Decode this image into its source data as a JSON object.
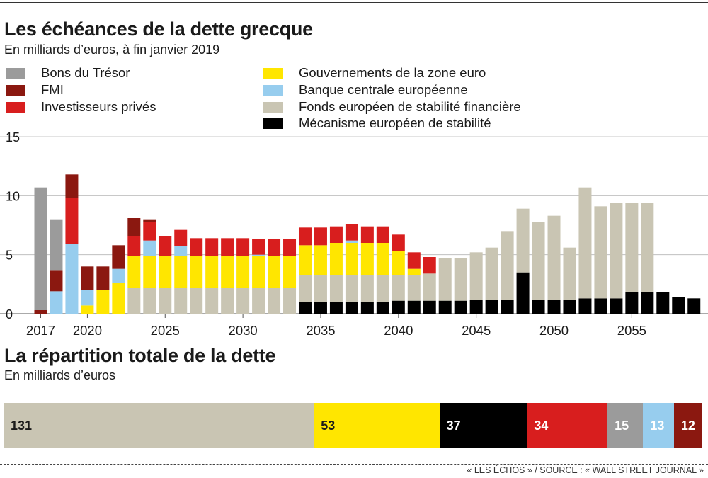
{
  "header": {
    "title": "Les échéances de la dette grecque",
    "subtitle": "En milliards d’euros, à fin janvier 2019"
  },
  "legend": [
    {
      "label": "Bons du Trésor",
      "color": "#9b9b9b"
    },
    {
      "label": "FMI",
      "color": "#8b1810"
    },
    {
      "label": "Investisseurs privés",
      "color": "#d81e1e"
    },
    {
      "label": "Gouvernements de la zone euro",
      "color": "#ffe600"
    },
    {
      "label": "Banque centrale européenne",
      "color": "#97cdee"
    },
    {
      "label": "Fonds européen de stabilité financière",
      "color": "#c9c5b3"
    },
    {
      "label": "Mécanisme européen de stabilité",
      "color": "#000000"
    }
  ],
  "chart_data": {
    "type": "bar",
    "stacked": true,
    "title": "Les échéances de la dette grecque",
    "subtitle": "En milliards d’euros, à fin janvier 2019",
    "ylim": [
      0,
      15
    ],
    "y_ticks": [
      0,
      5,
      10,
      15
    ],
    "x_tick_labels": [
      {
        "year": 2017,
        "label": "2017"
      },
      {
        "year": 2020,
        "label": "2020"
      },
      {
        "year": 2025,
        "label": "2025"
      },
      {
        "year": 2030,
        "label": "2030"
      },
      {
        "year": 2035,
        "label": "2035"
      },
      {
        "year": 2040,
        "label": "2040"
      },
      {
        "year": 2045,
        "label": "2045"
      },
      {
        "year": 2050,
        "label": "2050"
      },
      {
        "year": 2055,
        "label": "2055"
      }
    ],
    "grid": true,
    "x": [
      2017,
      2018,
      2019,
      2020,
      2021,
      2022,
      2023,
      2024,
      2025,
      2026,
      2027,
      2028,
      2029,
      2030,
      2031,
      2032,
      2033,
      2034,
      2035,
      2036,
      2037,
      2038,
      2039,
      2040,
      2041,
      2042,
      2043,
      2044,
      2045,
      2046,
      2047,
      2048,
      2049,
      2050,
      2051,
      2052,
      2053,
      2054,
      2055,
      2056,
      2057,
      2058,
      2059
    ],
    "series": [
      {
        "name": "Mécanisme européen de stabilité",
        "color": "#000000",
        "values": [
          0,
          0,
          0,
          0,
          0,
          0,
          0,
          0,
          0,
          0,
          0,
          0,
          0,
          0,
          0,
          0,
          0,
          1.0,
          1.0,
          1.0,
          1.0,
          1.0,
          1.0,
          1.1,
          1.1,
          1.1,
          1.1,
          1.1,
          1.2,
          1.2,
          1.2,
          3.5,
          1.2,
          1.2,
          1.2,
          1.3,
          1.3,
          1.3,
          1.8,
          1.8,
          1.8,
          1.4,
          1.3
        ]
      },
      {
        "name": "Fonds européen de stabilité financière",
        "color": "#c9c5b3",
        "values": [
          0,
          0,
          0,
          0,
          0,
          0,
          2.2,
          2.2,
          2.2,
          2.2,
          2.2,
          2.2,
          2.2,
          2.2,
          2.2,
          2.2,
          2.2,
          2.3,
          2.3,
          2.3,
          2.3,
          2.3,
          2.3,
          2.2,
          2.2,
          2.3,
          3.6,
          3.6,
          4.0,
          4.4,
          5.8,
          5.4,
          6.6,
          7.1,
          4.4,
          9.4,
          7.8,
          8.1,
          7.6,
          7.6,
          0,
          0,
          0
        ]
      },
      {
        "name": "Gouvernements de la zone euro",
        "color": "#ffe600",
        "values": [
          0,
          0,
          0,
          0.7,
          2.0,
          2.6,
          2.7,
          2.7,
          2.7,
          2.7,
          2.7,
          2.7,
          2.7,
          2.7,
          2.7,
          2.7,
          2.7,
          2.5,
          2.5,
          2.7,
          2.7,
          2.7,
          2.7,
          2.0,
          0.5,
          0,
          0,
          0,
          0,
          0,
          0,
          0,
          0,
          0,
          0,
          0,
          0,
          0,
          0,
          0,
          0,
          0,
          0
        ]
      },
      {
        "name": "Banque centrale européenne",
        "color": "#97cdee",
        "values": [
          0,
          1.9,
          5.9,
          1.3,
          0,
          1.2,
          0,
          1.3,
          0,
          0.8,
          0,
          0,
          0,
          0,
          0.1,
          0,
          0,
          0,
          0,
          0,
          0.2,
          0,
          0,
          0,
          0,
          0,
          0,
          0,
          0,
          0,
          0,
          0,
          0,
          0,
          0,
          0,
          0,
          0,
          0,
          0,
          0,
          0,
          0
        ]
      },
      {
        "name": "Investisseurs privés",
        "color": "#d81e1e",
        "values": [
          0,
          0,
          3.9,
          0,
          0,
          0,
          1.7,
          1.6,
          1.7,
          1.4,
          1.5,
          1.5,
          1.5,
          1.5,
          1.3,
          1.4,
          1.4,
          1.5,
          1.5,
          1.4,
          1.4,
          1.4,
          1.4,
          1.4,
          1.4,
          1.4,
          0,
          0,
          0,
          0,
          0,
          0,
          0,
          0,
          0,
          0,
          0,
          0,
          0,
          0,
          0,
          0,
          0
        ]
      },
      {
        "name": "FMI",
        "color": "#8b1810",
        "values": [
          0.3,
          1.8,
          2.0,
          2.0,
          2.0,
          2.0,
          1.5,
          0.2,
          0,
          0,
          0,
          0,
          0,
          0,
          0,
          0,
          0,
          0,
          0,
          0,
          0,
          0,
          0,
          0,
          0,
          0,
          0,
          0,
          0,
          0,
          0,
          0,
          0,
          0,
          0,
          0,
          0,
          0,
          0,
          0,
          0,
          0,
          0
        ]
      },
      {
        "name": "Bons du Trésor",
        "color": "#9b9b9b",
        "values": [
          10.4,
          4.3,
          0,
          0,
          0,
          0,
          0,
          0,
          0,
          0,
          0,
          0,
          0,
          0,
          0,
          0,
          0,
          0,
          0,
          0,
          0,
          0,
          0,
          0,
          0,
          0,
          0,
          0,
          0,
          0,
          0,
          0,
          0,
          0,
          0,
          0,
          0,
          0,
          0,
          0,
          0,
          0,
          0
        ]
      }
    ]
  },
  "section2": {
    "title": "La répartition totale de la dette",
    "subtitle": "En milliards d’euros"
  },
  "breakdown": [
    {
      "value": 131,
      "label": "131",
      "color": "#c9c5b3",
      "text_color": "#1a1a1a"
    },
    {
      "value": 53,
      "label": "53",
      "color": "#ffe600",
      "text_color": "#1a1a1a"
    },
    {
      "value": 37,
      "label": "37",
      "color": "#000000",
      "text_color": "#ffffff"
    },
    {
      "value": 34,
      "label": "34",
      "color": "#d81e1e",
      "text_color": "#ffffff"
    },
    {
      "value": 15,
      "label": "15",
      "color": "#9b9b9b",
      "text_color": "#ffffff"
    },
    {
      "value": 13,
      "label": "13",
      "color": "#97cdee",
      "text_color": "#ffffff"
    },
    {
      "value": 12,
      "label": "12",
      "color": "#8b1810",
      "text_color": "#ffffff"
    }
  ],
  "footer": {
    "source": "« LES ÉCHOS » / SOURCE : « WALL STREET JOURNAL »"
  }
}
